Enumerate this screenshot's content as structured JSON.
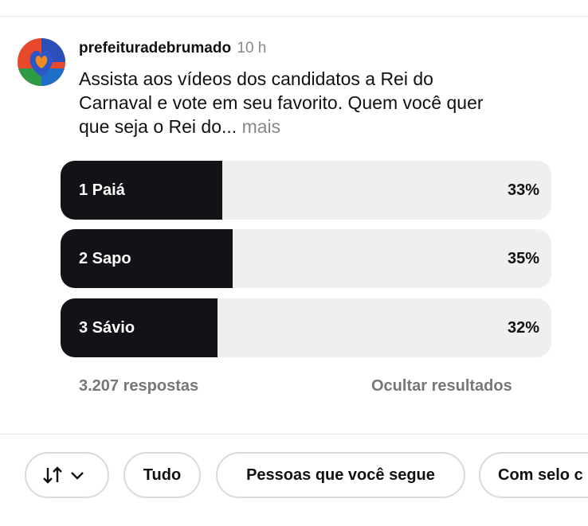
{
  "post": {
    "author": "prefeituradebrumado",
    "time": "10 h",
    "text_lines": [
      "Assista aos vídeos dos candidatos a Rei do",
      "Carnaval e vote em seu favorito. Quem você quer",
      "que seja o Rei do..."
    ],
    "more": "mais"
  },
  "poll": {
    "options": [
      {
        "label": "1 Paiá",
        "value": 33,
        "value_label": "33%"
      },
      {
        "label": "2 Sapo",
        "value": 35,
        "value_label": "35%"
      },
      {
        "label": "3 Sávio",
        "value": 32,
        "value_label": "32%"
      }
    ],
    "responses": "3.207 respostas",
    "hide": "Ocultar resultados"
  },
  "filters": [
    "Tudo",
    "Pessoas que você segue",
    "Com selo c"
  ]
}
